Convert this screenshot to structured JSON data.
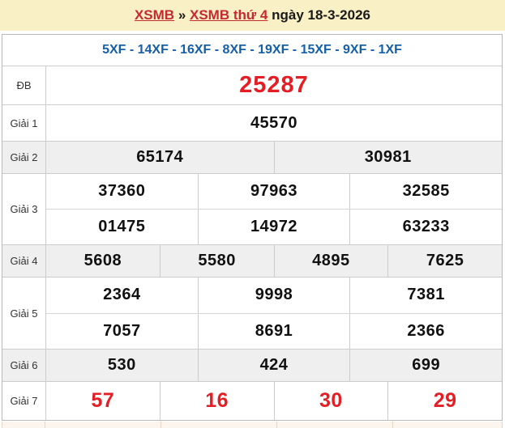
{
  "colors": {
    "title_band_bg": "#FAF0C5",
    "link_red": "#C52A30",
    "signs_blue": "#155FA8",
    "number_black": "#111111",
    "special_red": "#E31E25",
    "alt_row_bg": "#EFEFEF",
    "table_border": "#B9B9B9",
    "next_section_bg": "#FCF5ED"
  },
  "breadcrumb": {
    "link_region": "XSMB",
    "separator": " » ",
    "link_day": "XSMB thứ 4",
    "date_text": " ngày 18-3-2026"
  },
  "signs_header": "5XF - 14XF - 16XF - 8XF - 19XF - 15XF - 9XF - 1XF",
  "results_table": {
    "rows": [
      {
        "label": "ĐB",
        "style": "special",
        "alt": false,
        "lines": [
          [
            "25287"
          ]
        ]
      },
      {
        "label": "Giải 1",
        "style": "normal",
        "alt": false,
        "lines": [
          [
            "45570"
          ]
        ]
      },
      {
        "label": "Giải 2",
        "style": "normal",
        "alt": true,
        "lines": [
          [
            "65174",
            "30981"
          ]
        ]
      },
      {
        "label": "Giải 3",
        "style": "normal",
        "alt": false,
        "lines": [
          [
            "37360",
            "97963",
            "32585"
          ],
          [
            "01475",
            "14972",
            "63233"
          ]
        ]
      },
      {
        "label": "Giải 4",
        "style": "normal",
        "alt": true,
        "lines": [
          [
            "5608",
            "5580",
            "4895",
            "7625"
          ]
        ]
      },
      {
        "label": "Giải 5",
        "style": "normal",
        "alt": false,
        "lines": [
          [
            "2364",
            "9998",
            "7381"
          ],
          [
            "7057",
            "8691",
            "2366"
          ]
        ]
      },
      {
        "label": "Giải 6",
        "style": "normal",
        "alt": true,
        "lines": [
          [
            "530",
            "424",
            "699"
          ]
        ]
      },
      {
        "label": "Giải 7",
        "style": "red",
        "alt": false,
        "lines": [
          [
            "57",
            "16",
            "30",
            "29"
          ]
        ]
      }
    ]
  }
}
